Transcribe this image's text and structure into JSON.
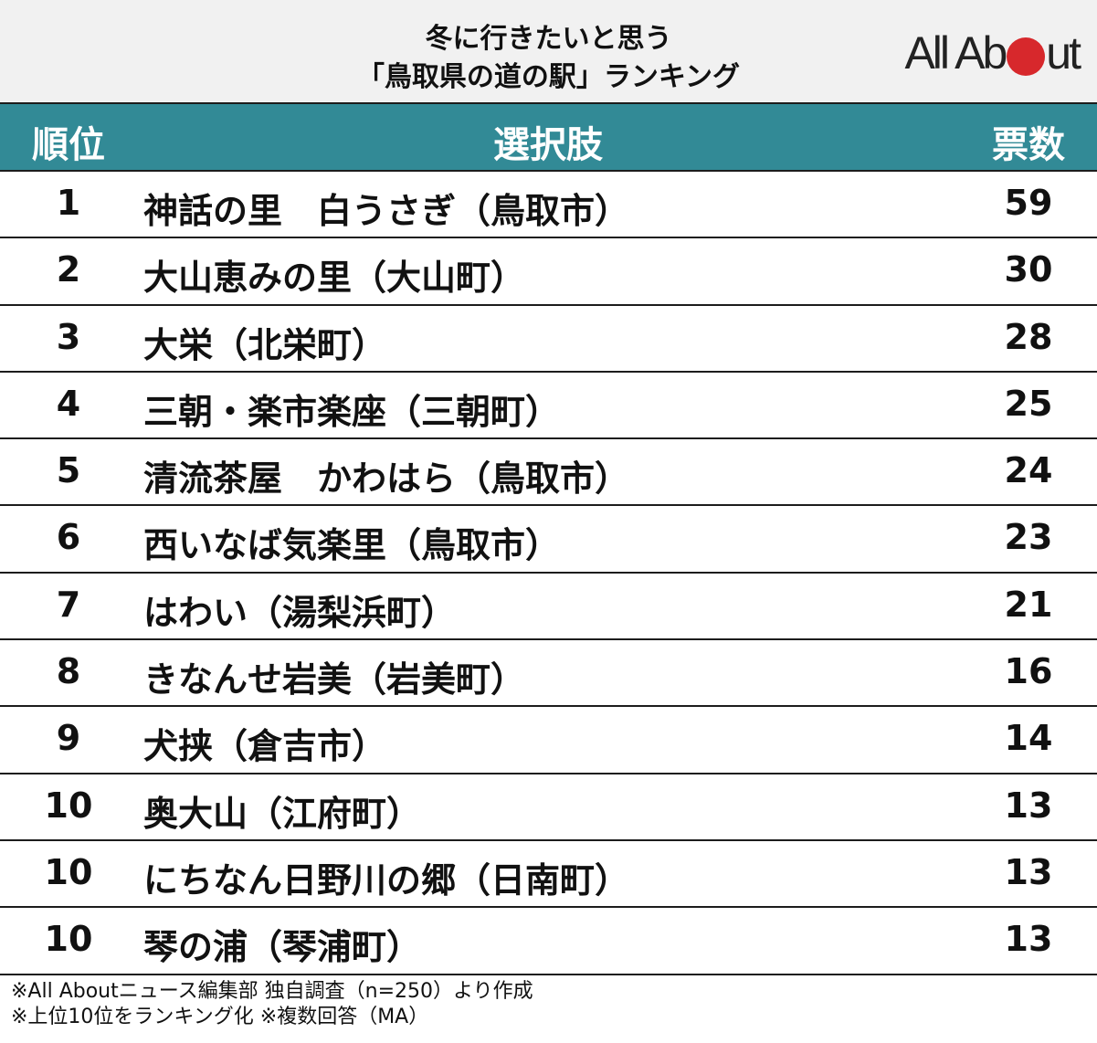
{
  "title": {
    "line1": "冬に行きたいと思う",
    "line2": "「鳥取県の道の駅」ランキング"
  },
  "logo": {
    "text_before": "All Ab",
    "text_after": "ut",
    "dot_color": "#d7282c"
  },
  "colors": {
    "header_bg": "#328a96",
    "title_bg": "#f1f1f1"
  },
  "table": {
    "headers": {
      "rank": "順位",
      "choice": "選択肢",
      "votes": "票数"
    },
    "rows": [
      {
        "rank": "1",
        "choice": "神話の里　白うさぎ（鳥取市）",
        "votes": "59"
      },
      {
        "rank": "2",
        "choice": "大山恵みの里（大山町）",
        "votes": "30"
      },
      {
        "rank": "3",
        "choice": "大栄（北栄町）",
        "votes": "28"
      },
      {
        "rank": "4",
        "choice": "三朝・楽市楽座（三朝町）",
        "votes": "25"
      },
      {
        "rank": "5",
        "choice": "清流茶屋　かわはら（鳥取市）",
        "votes": "24"
      },
      {
        "rank": "6",
        "choice": "西いなば気楽里（鳥取市）",
        "votes": "23"
      },
      {
        "rank": "7",
        "choice": "はわい（湯梨浜町）",
        "votes": "21"
      },
      {
        "rank": "8",
        "choice": "きなんせ岩美（岩美町）",
        "votes": "16"
      },
      {
        "rank": "9",
        "choice": "犬挟（倉吉市）",
        "votes": "14"
      },
      {
        "rank": "10",
        "choice": "奥大山（江府町）",
        "votes": "13"
      },
      {
        "rank": "10",
        "choice": "にちなん日野川の郷（日南町）",
        "votes": "13"
      },
      {
        "rank": "10",
        "choice": "琴の浦（琴浦町）",
        "votes": "13"
      }
    ]
  },
  "footer": {
    "line1": "※All Aboutニュース編集部 独自調査（n=250）より作成",
    "line2": "※上位10位をランキング化 ※複数回答（MA）"
  },
  "chart_data": {
    "type": "table",
    "title": "冬に行きたいと思う「鳥取県の道の駅」ランキング",
    "columns": [
      "順位",
      "選択肢",
      "票数"
    ],
    "categories": [
      "神話の里　白うさぎ（鳥取市）",
      "大山恵みの里（大山町）",
      "大栄（北栄町）",
      "三朝・楽市楽座（三朝町）",
      "清流茶屋　かわはら（鳥取市）",
      "西いなば気楽里（鳥取市）",
      "はわい（湯梨浜町）",
      "きなんせ岩美（岩美町）",
      "犬挟（倉吉市）",
      "奥大山（江府町）",
      "にちなん日野川の郷（日南町）",
      "琴の浦（琴浦町）"
    ],
    "ranks": [
      1,
      2,
      3,
      4,
      5,
      6,
      7,
      8,
      9,
      10,
      10,
      10
    ],
    "values": [
      59,
      30,
      28,
      25,
      24,
      23,
      21,
      16,
      14,
      13,
      13,
      13
    ],
    "notes": [
      "※All Aboutニュース編集部 独自調査（n=250）より作成",
      "※上位10位をランキング化 ※複数回答（MA）"
    ]
  }
}
